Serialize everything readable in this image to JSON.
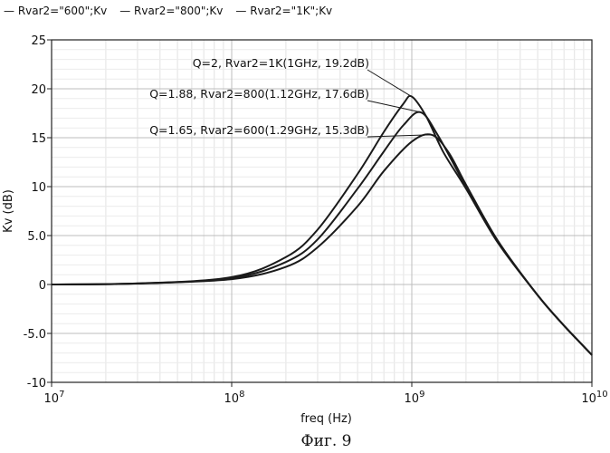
{
  "chart_data": {
    "type": "line",
    "title": "",
    "xlabel": "freq (Hz)",
    "ylabel": "Kv (dB)",
    "x_scale": "log",
    "xlim": [
      10000000,
      10000000000
    ],
    "ylim": [
      -10,
      25
    ],
    "x_ticks": [
      {
        "base": "10",
        "exp": "7"
      },
      {
        "base": "10",
        "exp": "8"
      },
      {
        "base": "10",
        "exp": "9"
      },
      {
        "base": "10",
        "exp": "10"
      }
    ],
    "y_ticks": [
      "25",
      "20",
      "15",
      "10",
      "5.0",
      "0",
      "-5.0",
      "-10"
    ],
    "y_tick_values": [
      25,
      20,
      15,
      10,
      5,
      0,
      -5,
      -10
    ],
    "grid": true,
    "legend": [
      {
        "dash": "—",
        "label": "Rvar2=\"600\";Kv"
      },
      {
        "dash": "—",
        "label": "Rvar2=\"800\";Kv"
      },
      {
        "dash": "—",
        "label": "Rvar2=\"1K\";Kv"
      }
    ],
    "series": [
      {
        "name": "Rvar2=\"600\";Kv",
        "x": [
          10000000,
          30000000,
          100000000,
          200000000,
          300000000,
          500000000,
          700000000,
          1000000000,
          1290000000,
          1600000000,
          2000000000,
          3000000000,
          5000000000,
          7000000000,
          10000000000
        ],
        "y": [
          0.0,
          0.1,
          0.55,
          1.8,
          3.8,
          8.0,
          11.6,
          14.6,
          15.3,
          13.5,
          10.2,
          4.5,
          -1.1,
          -4.2,
          -7.2
        ]
      },
      {
        "name": "Rvar2=\"800\";Kv",
        "x": [
          10000000,
          30000000,
          100000000,
          200000000,
          300000000,
          500000000,
          700000000,
          900000000,
          1120000000,
          1400000000,
          2000000000,
          3000000000,
          5000000000,
          7000000000,
          10000000000
        ],
        "y": [
          0.0,
          0.1,
          0.65,
          2.3,
          4.6,
          9.8,
          13.6,
          16.3,
          17.6,
          15.2,
          10.0,
          4.4,
          -1.1,
          -4.2,
          -7.2
        ]
      },
      {
        "name": "Rvar2=\"1K\";Kv",
        "x": [
          10000000,
          30000000,
          100000000,
          200000000,
          300000000,
          500000000,
          700000000,
          900000000,
          1000000000,
          1200000000,
          1500000000,
          2000000000,
          3000000000,
          5000000000,
          7000000000,
          10000000000
        ],
        "y": [
          0.0,
          0.1,
          0.75,
          2.8,
          5.6,
          11.3,
          15.6,
          18.5,
          19.2,
          17.2,
          13.5,
          9.8,
          4.3,
          -1.1,
          -4.2,
          -7.2
        ]
      }
    ],
    "annotations": [
      {
        "text": "Q=2, Rvar2=1K(1GHz, 19.2dB)",
        "x": 1000000000,
        "y": 19.2
      },
      {
        "text": "Q=1.88, Rvar2=800(1.12GHz, 17.6dB)",
        "x": 1120000000,
        "y": 17.6
      },
      {
        "text": "Q=1.65, Rvar2=600(1.29GHz, 15.3dB)",
        "x": 1290000000,
        "y": 15.3
      }
    ]
  },
  "caption": "Фиг. 9"
}
